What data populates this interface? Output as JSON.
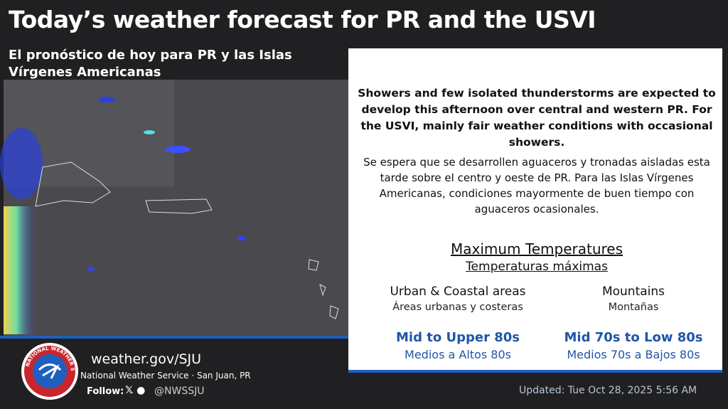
{
  "header": {
    "title": "Today’s weather forecast for PR and the USVI",
    "subtitle": "El pronóstico de hoy para PR y las Islas Vírgenes Americanas"
  },
  "forecast": {
    "english": "Showers and few isolated thunderstorms are expected to develop this afternoon over central and western PR. For the USVI, mainly fair weather conditions with occasional showers.",
    "spanish": "Se espera que se desarrollen aguaceros y tronadas aisladas esta tarde sobre el centro y oeste de PR. Para las Islas Vírgenes Americanas, condiciones mayormente de buen tiempo con aguaceros ocasionales."
  },
  "temperatures": {
    "title": "Maximum Temperatures",
    "subtitle": "Temperaturas máximas",
    "columns": [
      {
        "area": "Urban & Coastal areas",
        "area_es": "Áreas urbanas y costeras",
        "forecast": "Mid to Upper 80s",
        "forecast_es": "Medios a Altos 80s"
      },
      {
        "area": "Mountains",
        "area_es": "Montañas",
        "forecast": "Mid 70s to Low 80s",
        "forecast_es": "Medios 70s a Bajos 80s"
      }
    ]
  },
  "footer": {
    "website": "weather.gov/SJU",
    "agency": "National Weather Service · San Juan, PR",
    "follow_label": "Follow:",
    "handle": "@NWSSJU",
    "updated": "Updated: Tue Oct 28, 2025 5:56 AM"
  },
  "logo": {
    "text": "NATIONAL WEATHER SERVICE"
  }
}
